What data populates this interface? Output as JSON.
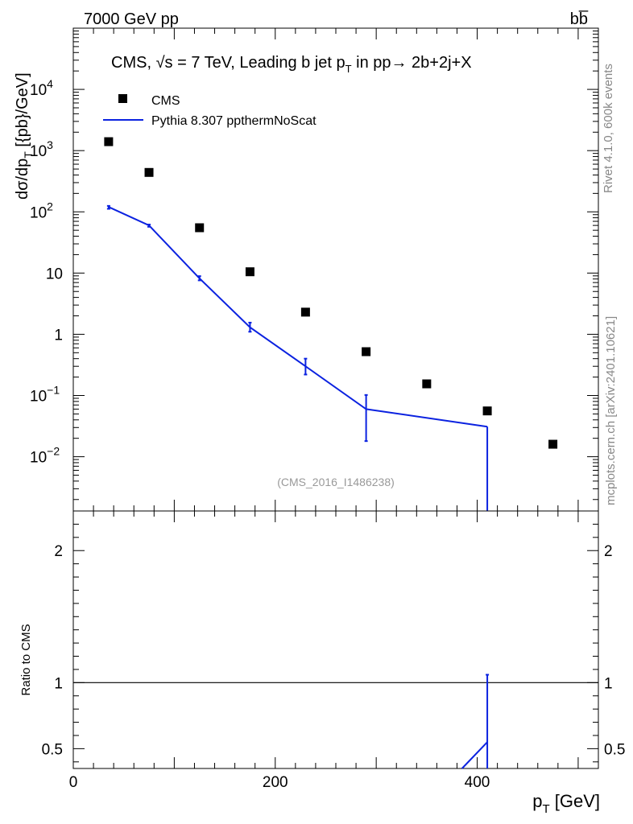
{
  "header": {
    "left_label": "7000 GeV pp",
    "right_label": "bb̅"
  },
  "side_labels": {
    "rivet": "Rivet 4.1.0,  600k events",
    "mcplots": "mcplots.cern.ch [arXiv:2401.10621]"
  },
  "chart_data": [
    {
      "type": "scatter",
      "title_parts": {
        "prefix": "CMS, ",
        "sqrt": "√s",
        "mid": " = 7 TeV, Leading b jet p",
        "sub": "T",
        "suffix": " in pp→  2b+2j+X"
      },
      "analysis_label": "(CMS_2016_I1486238)",
      "ylabel": "dσ/dp_T  [{pb}/GeV]",
      "xlabel": "p_T [GeV]",
      "yscale": "log",
      "ylim": [
        0.0013,
        100000
      ],
      "xlim": [
        0,
        520
      ],
      "x_ticks": [
        0,
        200,
        400
      ],
      "legend": {
        "placement": "top-left",
        "entries": [
          "CMS",
          "Pythia 8.307 ppthermNoScat"
        ]
      },
      "series": [
        {
          "name": "CMS",
          "marker": "square",
          "color": "#000000",
          "x": [
            35,
            75,
            125,
            175,
            230,
            290,
            350,
            410,
            475
          ],
          "y": [
            1400,
            440,
            55,
            10.5,
            2.3,
            0.52,
            0.155,
            0.056,
            0.016
          ]
        },
        {
          "name": "Pythia 8.307 ppthermNoScat",
          "marker": "line",
          "color": "#0b22e0",
          "x": [
            35,
            75,
            125,
            175,
            230,
            290,
            410
          ],
          "y": [
            120,
            60,
            8.2,
            1.3,
            0.3,
            0.06,
            0.031
          ],
          "err_lo": [
            112,
            57,
            7.6,
            1.1,
            0.22,
            0.018,
            0.0014
          ],
          "err_hi": [
            125,
            62,
            8.9,
            1.55,
            0.4,
            0.102,
            0.031
          ],
          "last_drop_to_axis": true
        }
      ]
    },
    {
      "type": "line",
      "ylabel": "Ratio to CMS",
      "xlabel": "p_T [GeV]",
      "ylim": [
        0.35,
        2.3
      ],
      "xlim": [
        0,
        520
      ],
      "y_ticks": [
        0.5,
        1,
        2
      ],
      "x_ticks": [
        0,
        200,
        400
      ],
      "reference_line": 1,
      "series": [
        {
          "name": "Pythia 8.307 ppthermNoScat",
          "color": "#0b22e0",
          "x": [
            385,
            410
          ],
          "y": [
            0.35,
            0.55
          ],
          "error_x": 410,
          "error_lo": 0.35,
          "error_hi": 1.06
        }
      ]
    }
  ]
}
